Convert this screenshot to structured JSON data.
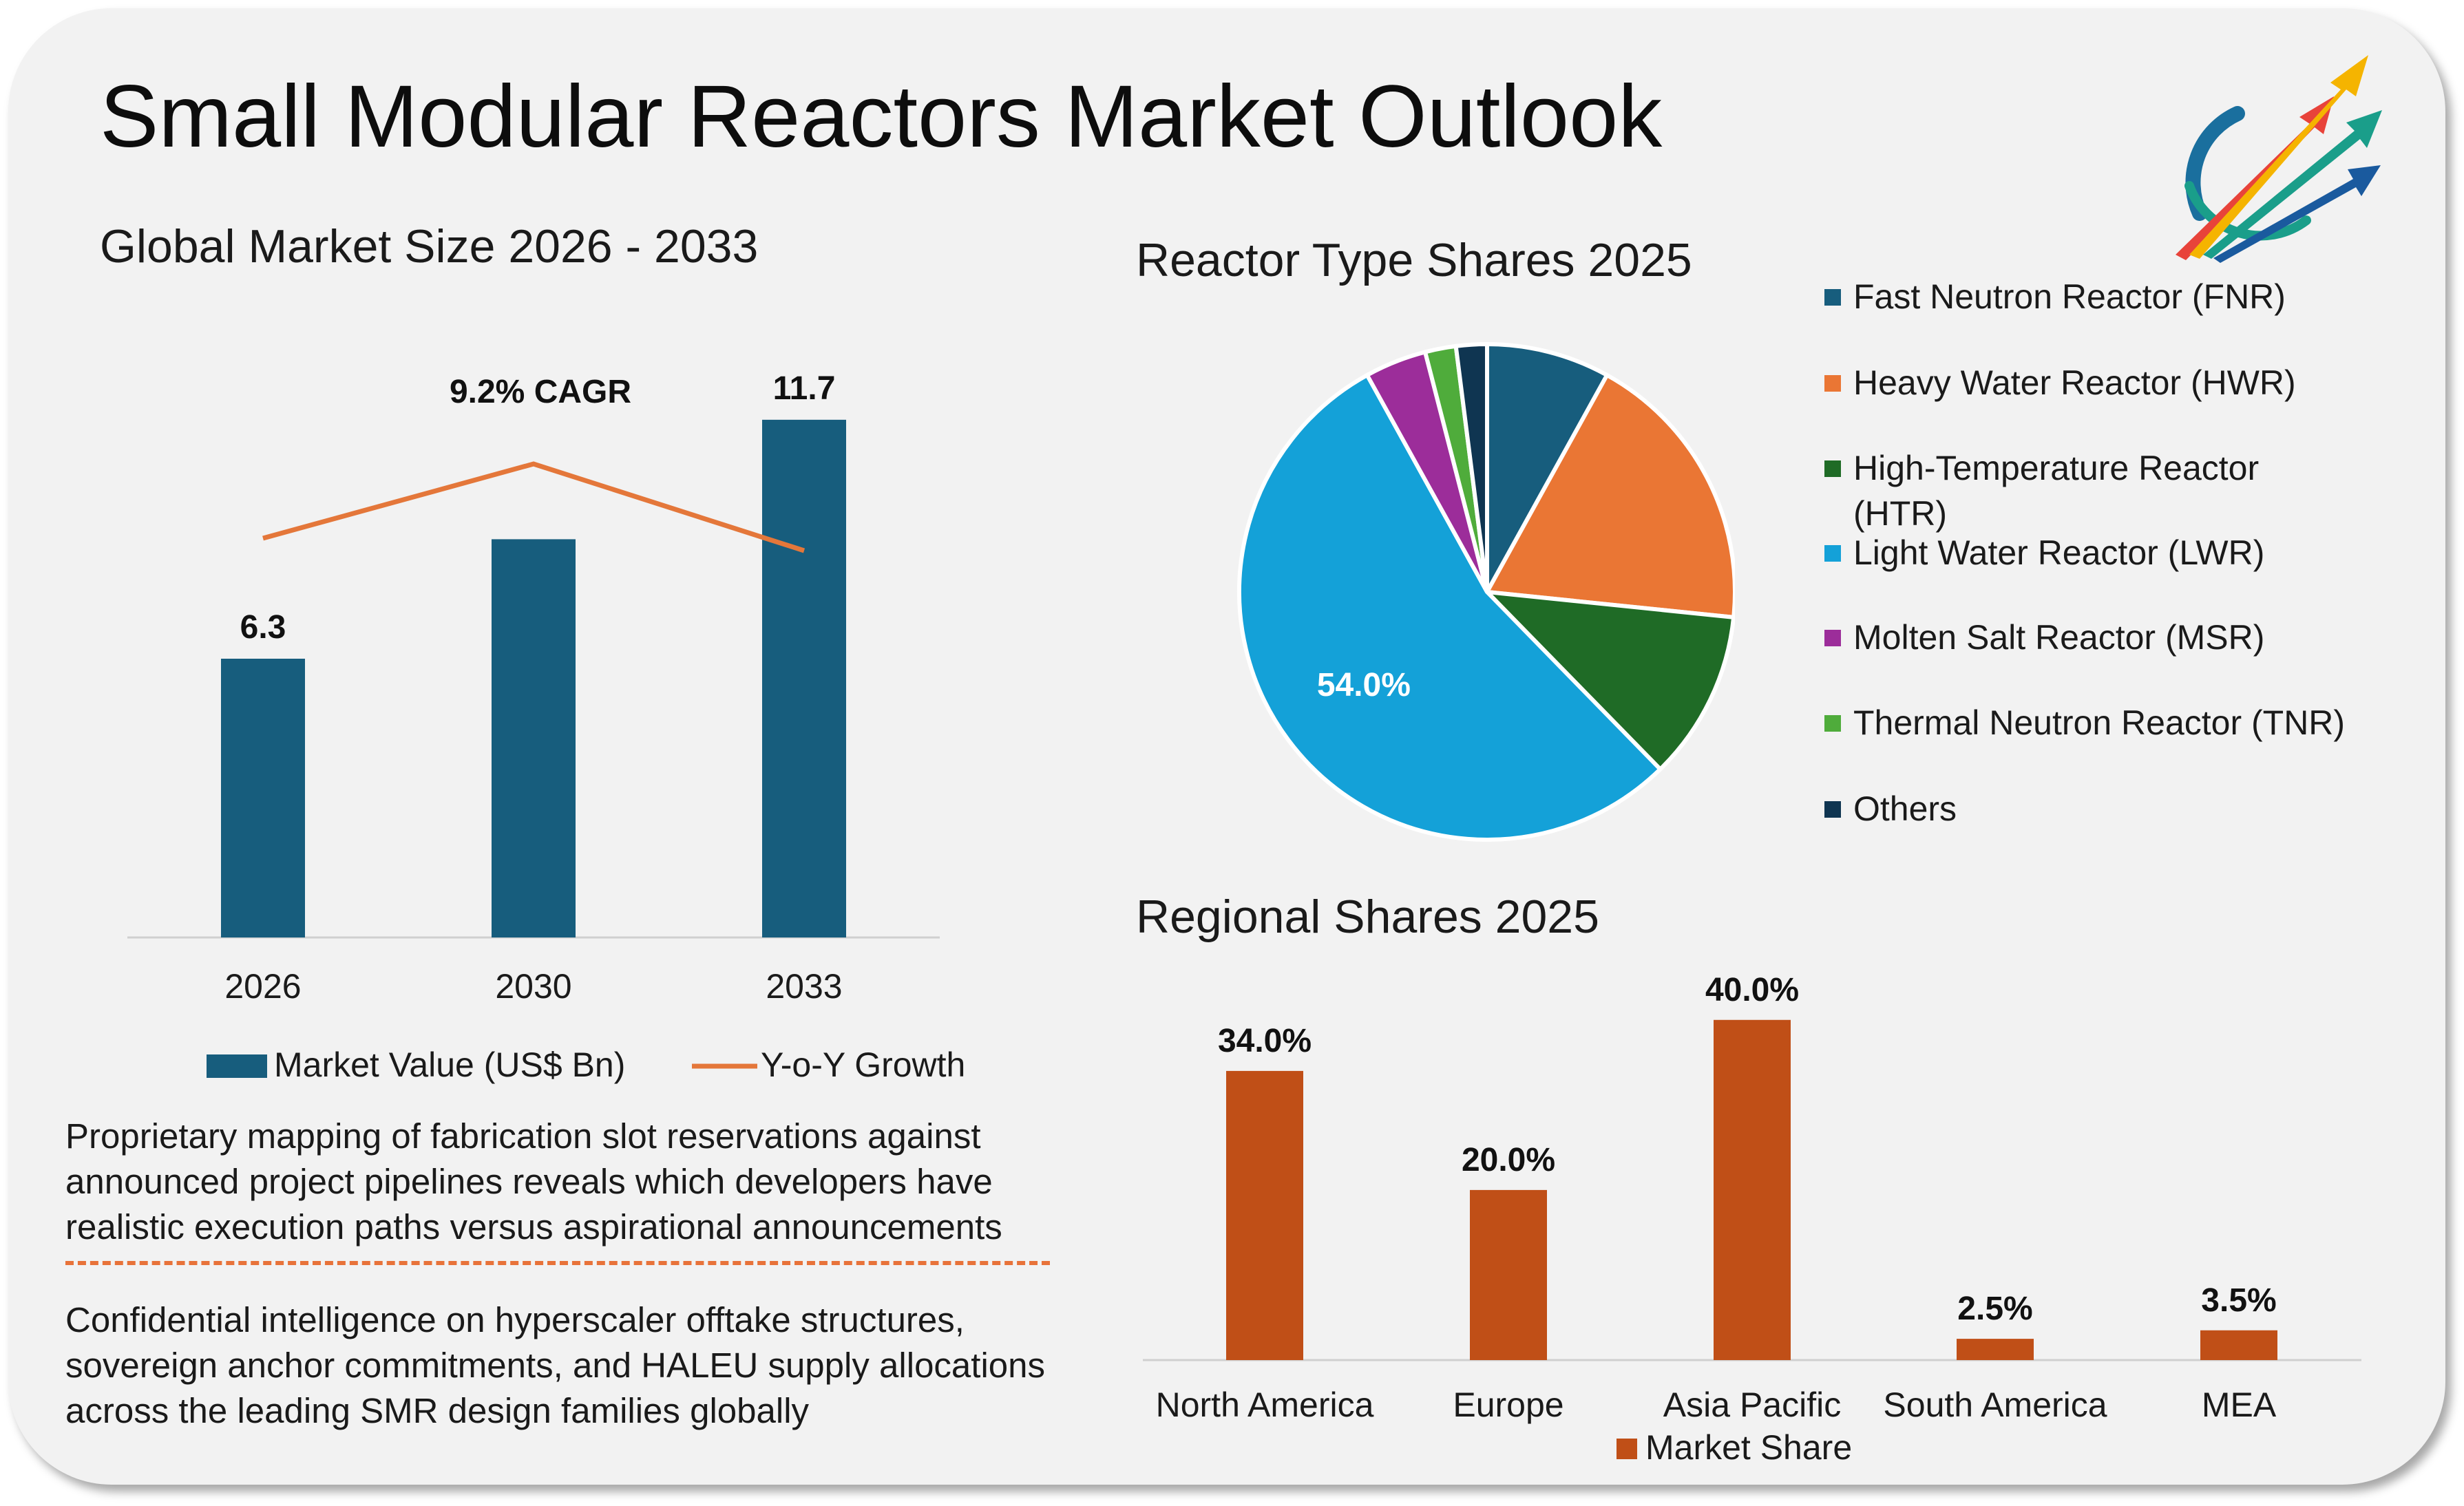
{
  "title": "Small Modular Reactors Market Outlook",
  "logo": {
    "icon": "arrows-globe-logo",
    "colors": [
      "#e8433a",
      "#f5b400",
      "#1a9e8a",
      "#1a5a9e"
    ]
  },
  "colors": {
    "bar_blue": "#175d7d",
    "line_orange": "#e4773a",
    "region_orange": "#c04f17",
    "fnr": "#175d7d",
    "hwr": "#ea7634",
    "htr": "#1f6b26",
    "lwr": "#14a1d8",
    "msr": "#9c2d9a",
    "tnr": "#4fac3b",
    "others": "#0f3551"
  },
  "market_size": {
    "section_title": "Global Market Size 2026 - 2033",
    "cagr_label": "9.2% CAGR",
    "legend_value": "Market Value (US$ Bn)",
    "legend_growth": "Y-o-Y Growth"
  },
  "reactor_types": {
    "section_title": "Reactor Type Shares 2025"
  },
  "regional": {
    "section_title": "Regional Shares 2025",
    "legend": "Market Share"
  },
  "paragraphs": {
    "p1": "Proprietary mapping of fabrication slot reservations against announced project pipelines reveals which developers have realistic execution paths versus aspirational announcements",
    "p2": "Confidential intelligence on hyperscaler offtake structures, sovereign anchor commitments, and HALEU supply allocations across the leading SMR design families globally"
  },
  "chart_data": [
    {
      "type": "bar",
      "title": "Global Market Size 2026 - 2033",
      "categories": [
        "2026",
        "2030",
        "2033"
      ],
      "series": [
        {
          "name": "Market Value (US$ Bn)",
          "values": [
            6.3,
            9.0,
            11.7
          ],
          "data_labels": [
            "6.3",
            "",
            "11.7"
          ]
        },
        {
          "name": "Y-o-Y Growth",
          "type": "line",
          "values": [
            9.2,
            10.4,
            9.0
          ]
        }
      ],
      "annotation": "9.2% CAGR",
      "ylim": [
        0,
        14
      ],
      "grid": false,
      "legend": "bottom"
    },
    {
      "type": "pie",
      "title": "Reactor Type Shares 2025",
      "labels": [
        "Fast Neutron Reactor (FNR)",
        "Heavy Water Reactor (HWR)",
        "High-Temperature Reactor (HTR)",
        "Light Water Reactor (LWR)",
        "Molten Salt Reactor (MSR)",
        "Thermal Neutron Reactor (TNR)",
        "Others"
      ],
      "values": [
        8.0,
        18.5,
        11.0,
        54.0,
        4.0,
        2.0,
        2.0
      ],
      "data_labels": [
        "",
        "",
        "",
        "54.0%",
        "",
        "",
        ""
      ],
      "legend": "right"
    },
    {
      "type": "bar",
      "title": "Regional Shares 2025",
      "categories": [
        "North America",
        "Europe",
        "Asia Pacific",
        "South America",
        "MEA"
      ],
      "series": [
        {
          "name": "Market Share",
          "values": [
            34.0,
            20.0,
            40.0,
            2.5,
            3.5
          ],
          "data_labels": [
            "34.0%",
            "20.0%",
            "40.0%",
            "2.5%",
            "3.5%"
          ]
        }
      ],
      "ylim": [
        0,
        45
      ],
      "grid": false,
      "legend": "bottom"
    }
  ]
}
